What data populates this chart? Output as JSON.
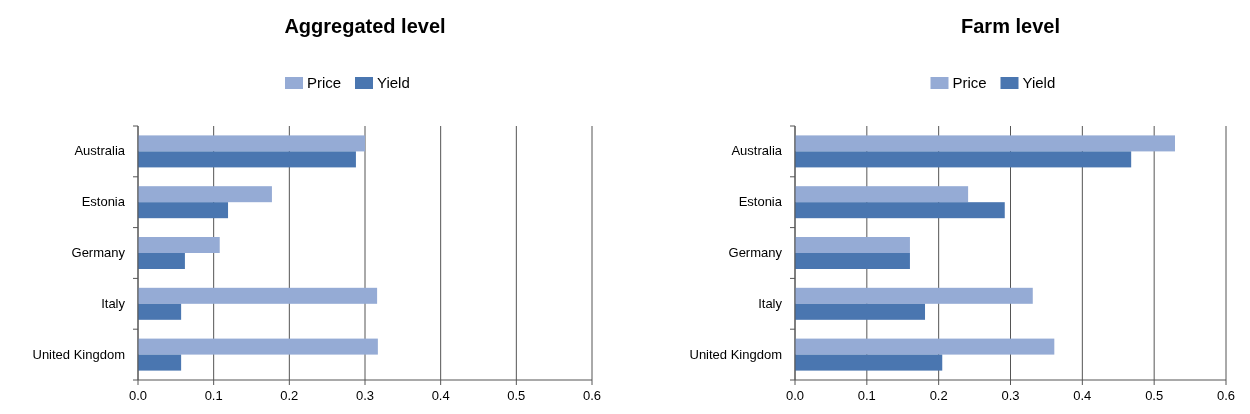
{
  "chart_data": [
    {
      "type": "bar",
      "orientation": "horizontal",
      "title": "Aggregated level",
      "categories": [
        "Australia",
        "Estonia",
        "Germany",
        "Italy",
        "United Kingdom"
      ],
      "series": [
        {
          "name": "Price",
          "color": "#95abd5",
          "values": [
            0.3,
            0.177,
            0.108,
            0.316,
            0.317
          ]
        },
        {
          "name": "Yield",
          "color": "#4a76b0",
          "values": [
            0.288,
            0.119,
            0.062,
            0.057,
            0.057
          ]
        }
      ],
      "xlim": [
        0,
        0.6
      ],
      "xticks": [
        {
          "value": 0,
          "label": "0.0"
        },
        0.1,
        0.2,
        0.3,
        0.4,
        0.5,
        0.6
      ],
      "grid": "x",
      "legend": "top"
    },
    {
      "type": "bar",
      "orientation": "horizontal",
      "title": "Farm level",
      "categories": [
        "Australia",
        "Estonia",
        "Germany",
        "Italy",
        "United Kingdom"
      ],
      "series": [
        {
          "name": "Price",
          "color": "#95abd5",
          "values": [
            0.529,
            0.241,
            0.16,
            0.331,
            0.361
          ]
        },
        {
          "name": "Yield",
          "color": "#4a76b0",
          "values": [
            0.468,
            0.292,
            0.16,
            0.181,
            0.205
          ]
        }
      ],
      "xlim": [
        0,
        0.6
      ],
      "xticks": [
        {
          "value": 0,
          "label": "0.0"
        },
        0.1,
        0.2,
        0.3,
        0.4,
        0.5,
        0.6
      ],
      "grid": "x",
      "legend": "top"
    }
  ]
}
